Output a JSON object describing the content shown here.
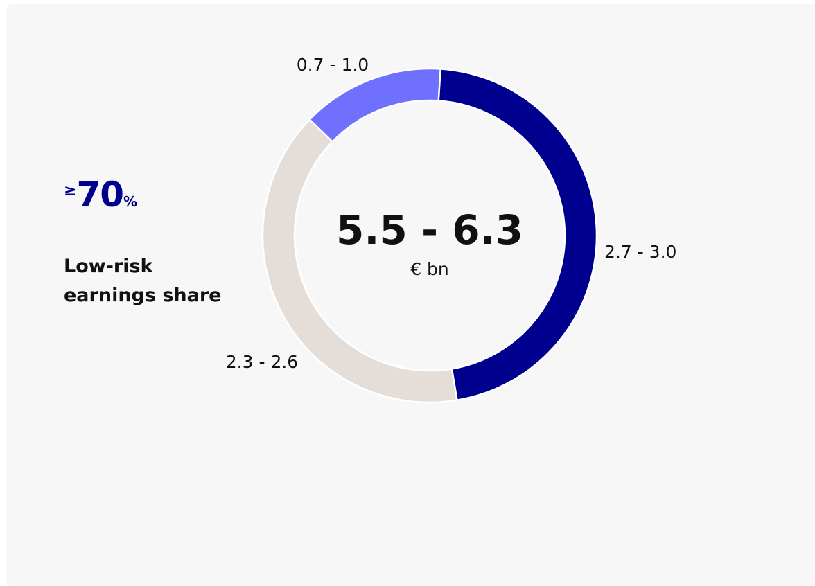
{
  "chart_data": {
    "type": "donut",
    "categories": [
      "0.7 - 1.0",
      "2.7 - 3.0",
      "2.3 - 2.6"
    ],
    "values": [
      [
        0.7,
        1.0
      ],
      [
        2.7,
        3.0
      ],
      [
        2.3,
        2.6
      ]
    ],
    "value_labels": [
      "0.7 - 1.0",
      "2.7 - 3.0",
      "2.3 - 2.6"
    ],
    "colors": [
      "#7070ff",
      "#00008f",
      "#e5ddd7"
    ],
    "center_label": "5.5 - 6.3",
    "center_unit": "€ bn"
  },
  "stat": {
    "prefix": "≥",
    "value": 70,
    "suffix": "%",
    "label": "Low-risk earnings share"
  }
}
